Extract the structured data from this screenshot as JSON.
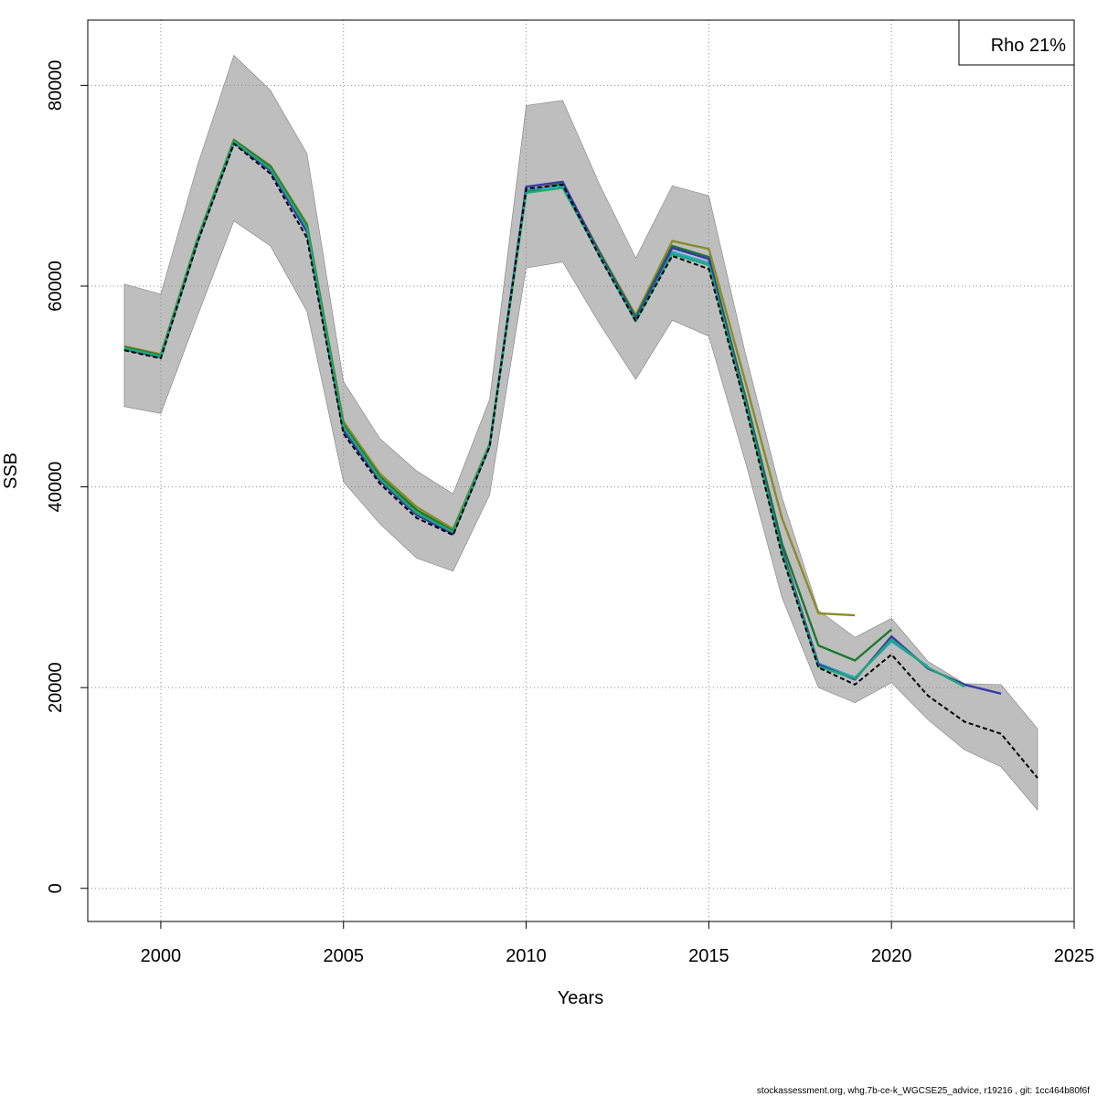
{
  "chart_data": {
    "type": "line",
    "title": "",
    "xlabel": "Years",
    "ylabel": "SSB",
    "xlim": [
      1998,
      2025
    ],
    "ylim": [
      -3300,
      86500
    ],
    "x_ticks": [
      2000,
      2005,
      2010,
      2015,
      2020,
      2025
    ],
    "y_ticks": [
      0,
      20000,
      40000,
      60000,
      80000
    ],
    "grid": true,
    "legend": {
      "position": "top-right",
      "text": "Rho 21%"
    },
    "colors": {
      "band": "#bebebe",
      "band_edge": "#808080",
      "base": "#000000",
      "peels": [
        "#8b8b2b",
        "#1a7a2a",
        "#2aa5c8",
        "#3a3aa8",
        "#1fa87a"
      ]
    },
    "confidence_band": {
      "x": [
        1999,
        2000,
        2001,
        2002,
        2003,
        2004,
        2005,
        2006,
        2007,
        2008,
        2009,
        2010,
        2011,
        2012,
        2013,
        2014,
        2015,
        2016,
        2017,
        2018,
        2019,
        2020,
        2021,
        2022,
        2023,
        2024
      ],
      "lower": [
        48000,
        47300,
        57000,
        66500,
        64000,
        57500,
        40500,
        36300,
        32900,
        31600,
        39200,
        61800,
        62400,
        56300,
        50700,
        56600,
        55000,
        42500,
        29000,
        20000,
        18500,
        20500,
        16800,
        13800,
        12100,
        7800
      ],
      "upper": [
        60200,
        59200,
        72000,
        83000,
        79500,
        73200,
        50500,
        44800,
        41600,
        39300,
        48700,
        78000,
        78500,
        70200,
        62800,
        70000,
        69000,
        53300,
        39000,
        27700,
        25000,
        26900,
        22600,
        20400,
        20300,
        15900
      ]
    },
    "series": [
      {
        "x": [
          1999,
          2000,
          2001,
          2002,
          2003,
          2004,
          2005,
          2006,
          2007,
          2008,
          2009,
          2010,
          2011,
          2012,
          2013,
          2014,
          2015,
          2016,
          2017,
          2018,
          2019,
          2020,
          2021,
          2022,
          2023,
          2024
        ],
        "values": [
          53600,
          52800,
          64300,
          74200,
          71200,
          64800,
          45300,
          40300,
          36900,
          35200,
          44000,
          69700,
          70100,
          63000,
          56500,
          63000,
          61700,
          48100,
          33200,
          22000,
          20300,
          23300,
          19200,
          16600,
          15400,
          11000
        ]
      },
      {
        "x": [
          1999,
          2000,
          2001,
          2002,
          2003,
          2004,
          2005,
          2006,
          2007,
          2008,
          2009,
          2010,
          2011,
          2012,
          2013,
          2014,
          2015,
          2016,
          2017,
          2018,
          2019
        ],
        "values": [
          54000,
          53200,
          64700,
          74600,
          72000,
          66200,
          46500,
          41300,
          38000,
          35800,
          44300,
          69500,
          70300,
          63500,
          57100,
          64500,
          63700,
          50500,
          36900,
          27400,
          27200
        ]
      },
      {
        "x": [
          1999,
          2000,
          2001,
          2002,
          2003,
          2004,
          2005,
          2006,
          2007,
          2008,
          2009,
          2010,
          2011,
          2012,
          2013,
          2014,
          2015,
          2016,
          2017,
          2018,
          2019,
          2020
        ],
        "values": [
          53900,
          53100,
          64600,
          74500,
          71900,
          66000,
          46200,
          41000,
          37700,
          35600,
          44200,
          69400,
          70200,
          63400,
          56900,
          64000,
          62900,
          49000,
          34400,
          24200,
          22700,
          25800
        ]
      },
      {
        "x": [
          1999,
          2000,
          2001,
          2002,
          2003,
          2004,
          2005,
          2006,
          2007,
          2008,
          2009,
          2010,
          2011,
          2012,
          2013,
          2014,
          2015,
          2016,
          2017,
          2018,
          2019,
          2020,
          2021
        ],
        "values": [
          53800,
          53000,
          64400,
          74300,
          71600,
          65600,
          45800,
          40700,
          37300,
          35400,
          44100,
          69600,
          70000,
          63200,
          56600,
          63400,
          62300,
          48600,
          33700,
          22400,
          21000,
          24600,
          22100
        ]
      },
      {
        "x": [
          1999,
          2000,
          2001,
          2002,
          2003,
          2004,
          2005,
          2006,
          2007,
          2008,
          2009,
          2010,
          2011,
          2012,
          2013,
          2014,
          2015,
          2016,
          2017,
          2018,
          2019,
          2020,
          2021,
          2022,
          2023
        ],
        "values": [
          53700,
          52900,
          64400,
          74300,
          71500,
          65400,
          45600,
          40600,
          37200,
          35300,
          44100,
          69900,
          70400,
          63300,
          56700,
          63800,
          62700,
          48600,
          33800,
          22300,
          20800,
          25100,
          21900,
          20300,
          19400
        ]
      },
      {
        "x": [
          1999,
          2000,
          2001,
          2002,
          2003,
          2004,
          2005,
          2006,
          2007,
          2008,
          2009,
          2010,
          2011,
          2012,
          2013,
          2014,
          2015,
          2016,
          2017,
          2018,
          2019,
          2020,
          2021,
          2022
        ],
        "values": [
          53800,
          53000,
          64500,
          74400,
          71700,
          65800,
          46000,
          40800,
          37400,
          35500,
          44200,
          69300,
          69800,
          63100,
          56500,
          63200,
          62100,
          48400,
          33500,
          22100,
          20900,
          24800,
          22000,
          20100
        ]
      }
    ]
  },
  "footer": "stockassessment.org, whg.7b-ce-k_WGCSE25_advice, r19216 , git: 1cc464b80f6f"
}
